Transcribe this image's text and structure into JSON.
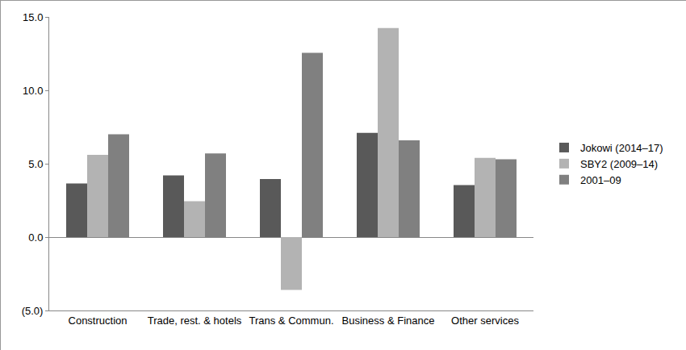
{
  "chart_data": {
    "type": "bar",
    "categories": [
      "Construction",
      "Trade, rest. & hotels",
      "Trans & Commun.",
      "Business & Finance",
      "Other services"
    ],
    "series": [
      {
        "name": "Jokowi (2014–17)",
        "color": "#595959",
        "values": [
          3.65,
          4.2,
          3.95,
          7.1,
          3.55
        ]
      },
      {
        "name": "SBY2 (2009–14)",
        "color": "#b3b3b3",
        "values": [
          5.6,
          2.45,
          -3.6,
          14.25,
          5.4
        ]
      },
      {
        "name": "2001–09",
        "color": "#808080",
        "values": [
          7.0,
          5.7,
          12.55,
          6.6,
          5.3
        ]
      }
    ],
    "ylim": [
      -5,
      15
    ],
    "yticks": [
      {
        "value": -5,
        "label": "(5.0)"
      },
      {
        "value": 0,
        "label": "0.0"
      },
      {
        "value": 5,
        "label": "5.0"
      },
      {
        "value": 10,
        "label": "10.0"
      },
      {
        "value": 15,
        "label": "15.0"
      }
    ],
    "grid": false,
    "legend": "right"
  }
}
